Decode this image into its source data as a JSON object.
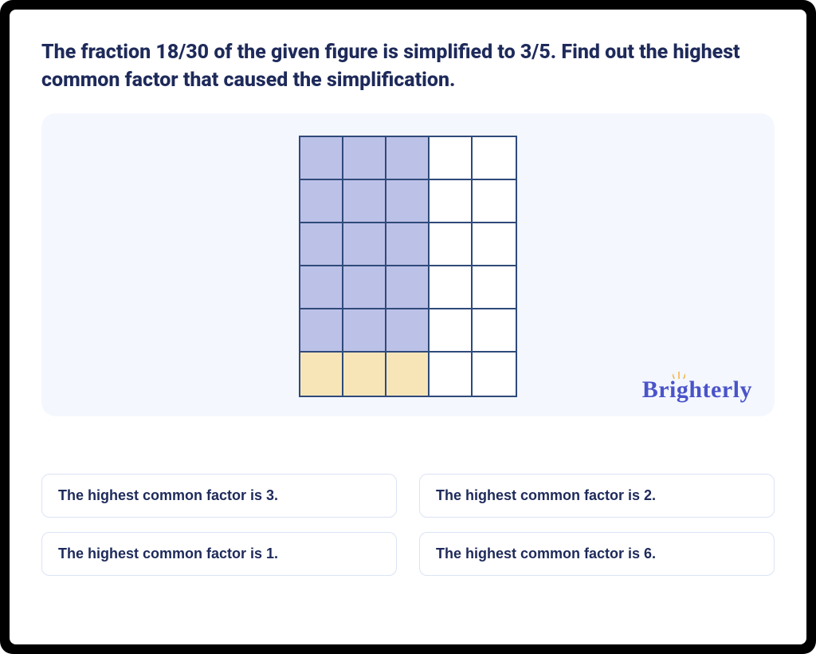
{
  "colors": {
    "frame_bg": "#000000",
    "card_bg": "#ffffff",
    "question_text": "#1e2a5a",
    "panel_bg": "#f4f7fe",
    "grid_border": "#2f4a7a",
    "cell_purple": "#bcc1e8",
    "cell_yellow": "#f7e5b8",
    "cell_white": "#ffffff",
    "brand_color": "#4a54c9",
    "brand_accent": "#f3b648",
    "answer_border": "#dbe3f5",
    "answer_text": "#1e2a5a"
  },
  "question": "The fraction 18/30 of the given figure is simplified to 3/5. Find out the highest common factor that caused the simplification.",
  "figure": {
    "rows": 6,
    "cols": 5,
    "cell_size": 54,
    "border_width": 2,
    "fills": [
      [
        "purple",
        "purple",
        "purple",
        "white",
        "white"
      ],
      [
        "purple",
        "purple",
        "purple",
        "white",
        "white"
      ],
      [
        "purple",
        "purple",
        "purple",
        "white",
        "white"
      ],
      [
        "purple",
        "purple",
        "purple",
        "white",
        "white"
      ],
      [
        "purple",
        "purple",
        "purple",
        "white",
        "white"
      ],
      [
        "yellow",
        "yellow",
        "yellow",
        "white",
        "white"
      ]
    ]
  },
  "brand": "Brighterly",
  "answers": [
    "The highest common factor is 3.",
    "The highest common factor is 2.",
    "The highest common factor is 1.",
    "The highest common factor is 6."
  ]
}
